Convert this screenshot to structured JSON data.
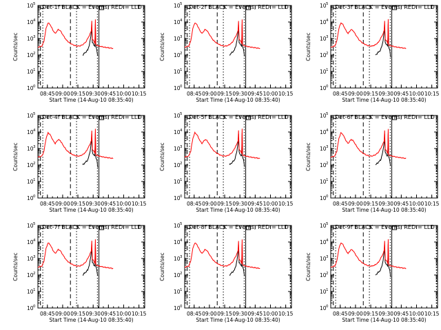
{
  "figure": {
    "xlabel": "Start Time (14-Aug-10 08:35:40)",
    "ylabel": "Counts/sec",
    "x_tick_labels": [
      "08:45",
      "09:00",
      "09:15",
      "09:30",
      "09:45",
      "10:00",
      "10:15"
    ],
    "y_tick_labels": [
      "10",
      "10",
      "10",
      "10",
      "10",
      "10"
    ],
    "y_tick_exponents": [
      "0",
      "1",
      "2",
      "3",
      "4",
      "5"
    ],
    "colors": {
      "events": "#000000",
      "lld": "#ff0000",
      "axes": "#000000"
    }
  },
  "chart_data": [
    {
      "type": "line",
      "title": "Det-1f BLACK = Events, RED = LLD",
      "detector": "1f"
    },
    {
      "type": "line",
      "title": "Det-2f BLACK = Events, RED = LLD",
      "detector": "2f"
    },
    {
      "type": "line",
      "title": "Det-3f BLACK = Events, RED = LLD",
      "detector": "3f"
    },
    {
      "type": "line",
      "title": "Det-4f BLACK = Events, RED = LLD",
      "detector": "4f"
    },
    {
      "type": "line",
      "title": "Det-5f BLACK = Events, RED = LLD",
      "detector": "5f"
    },
    {
      "type": "line",
      "title": "Det-6f BLACK = Events, RED = LLD",
      "detector": "6f"
    },
    {
      "type": "line",
      "title": "Det-7f BLACK = Events, RED = LLD",
      "detector": "7f"
    },
    {
      "type": "line",
      "title": "Det-8f BLACK = Events, RED = LLD",
      "detector": "8f"
    },
    {
      "type": "line",
      "title": "Det-9f BLACK = Events, RED = LLD",
      "detector": "9f"
    }
  ],
  "series_model": {
    "x_unit": "minutes since 08:35:40",
    "xlim": [
      0,
      105
    ],
    "y_scale": "log",
    "ylim": [
      1,
      100000
    ],
    "lld_red": [
      [
        0,
        300
      ],
      [
        4,
        350
      ],
      [
        6,
        700
      ],
      [
        8,
        4000
      ],
      [
        10,
        9000
      ],
      [
        12,
        7000
      ],
      [
        15,
        3000
      ],
      [
        17,
        2000
      ],
      [
        20,
        3500
      ],
      [
        22,
        3000
      ],
      [
        25,
        1500
      ],
      [
        28,
        800
      ],
      [
        31,
        550
      ],
      [
        35,
        400
      ],
      [
        38,
        350
      ],
      [
        41,
        350
      ],
      [
        44,
        420
      ],
      [
        47,
        600
      ],
      [
        49,
        1000
      ],
      [
        51,
        1700
      ],
      [
        52.5,
        3000
      ],
      [
        53,
        12000
      ],
      [
        53.5,
        900
      ],
      [
        55,
        700
      ],
      [
        56,
        500
      ],
      [
        56.5,
        15000
      ],
      [
        57,
        400
      ],
      [
        60,
        350
      ],
      [
        65,
        300
      ],
      [
        70,
        270
      ],
      [
        74,
        250
      ]
    ],
    "events_black": [
      [
        44,
        100
      ],
      [
        47,
        150
      ],
      [
        49,
        200
      ],
      [
        50.5,
        400
      ],
      [
        51.5,
        800
      ],
      [
        52.5,
        2500
      ],
      [
        53,
        7000
      ],
      [
        53.5,
        600
      ],
      [
        55,
        400
      ],
      [
        56,
        350
      ],
      [
        56.5,
        8000
      ],
      [
        57,
        300
      ],
      [
        58,
        200
      ],
      [
        58.8,
        80
      ]
    ],
    "vertical_markers": [
      {
        "x": 2.5,
        "style": "dashed"
      },
      {
        "x": 4.8,
        "style": "dotted"
      },
      {
        "x": 32,
        "style": "dashed"
      },
      {
        "x": 38,
        "style": "dotted"
      },
      {
        "x": 58.5,
        "style": "dotted"
      },
      {
        "x": 60,
        "style": "solid-box"
      },
      {
        "x": 104,
        "style": "dotted"
      }
    ]
  }
}
